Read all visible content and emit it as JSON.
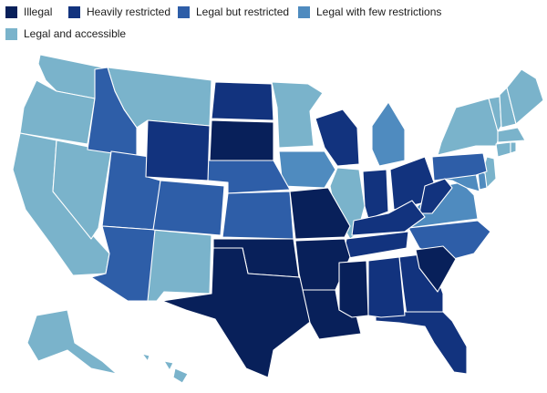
{
  "legend": {
    "items": [
      {
        "label": "Illegal",
        "color": "#08205a"
      },
      {
        "label": "Heavily restricted",
        "color": "#12337e"
      },
      {
        "label": "Legal but restricted",
        "color": "#2e5ea8"
      },
      {
        "label": "Legal with few restrictions",
        "color": "#4f8bbf"
      },
      {
        "label": "Legal and accessible",
        "color": "#7ab3cb"
      }
    ]
  }
}
